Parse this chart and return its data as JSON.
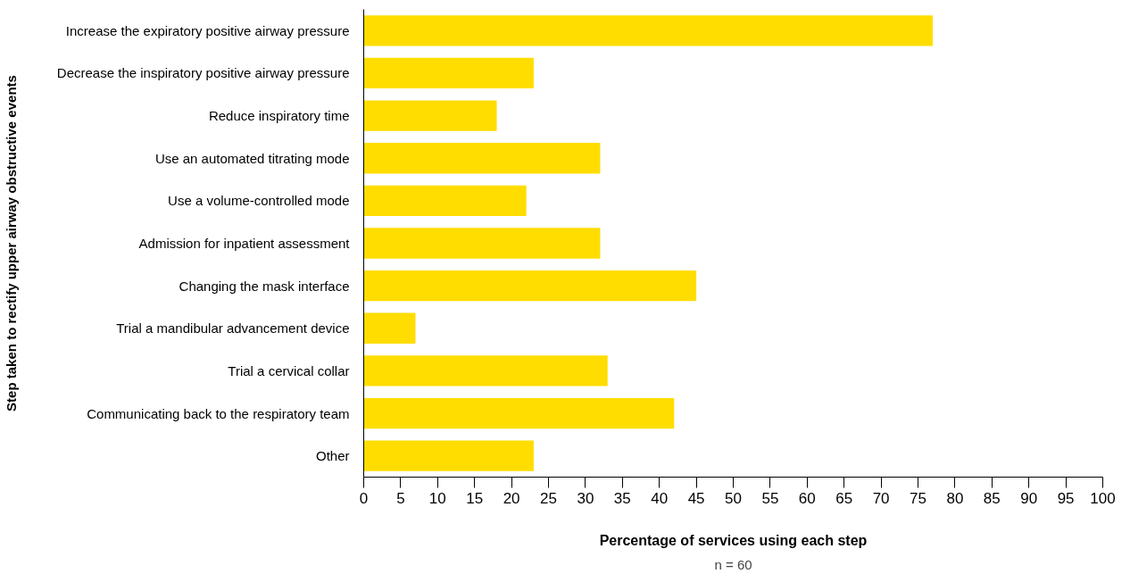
{
  "chart_data": {
    "type": "bar",
    "orientation": "horizontal",
    "categories": [
      "Increase the expiratory positive airway pressure",
      "Decrease the inspiratory positive airway pressure",
      "Reduce inspiratory time",
      "Use an automated titrating mode",
      "Use a volume-controlled mode",
      "Admission for inpatient assessment",
      "Changing the mask interface",
      "Trial a mandibular advancement device",
      "Trial a cervical collar",
      "Communicating back to the respiratory team",
      "Other"
    ],
    "values": [
      77,
      23,
      18,
      32,
      22,
      32,
      45,
      7,
      33,
      42,
      23
    ],
    "color": "#ffdd00",
    "xlabel": "Percentage of services using each step",
    "ylabel": "Step taken to rectify upper airway obstructive events",
    "annotations": [
      "n = 60"
    ],
    "xlim": [
      0,
      100
    ],
    "xticks": [
      0,
      5,
      10,
      15,
      20,
      25,
      30,
      35,
      40,
      45,
      50,
      55,
      60,
      65,
      70,
      75,
      80,
      85,
      90,
      95,
      100
    ],
    "grid": false
  }
}
